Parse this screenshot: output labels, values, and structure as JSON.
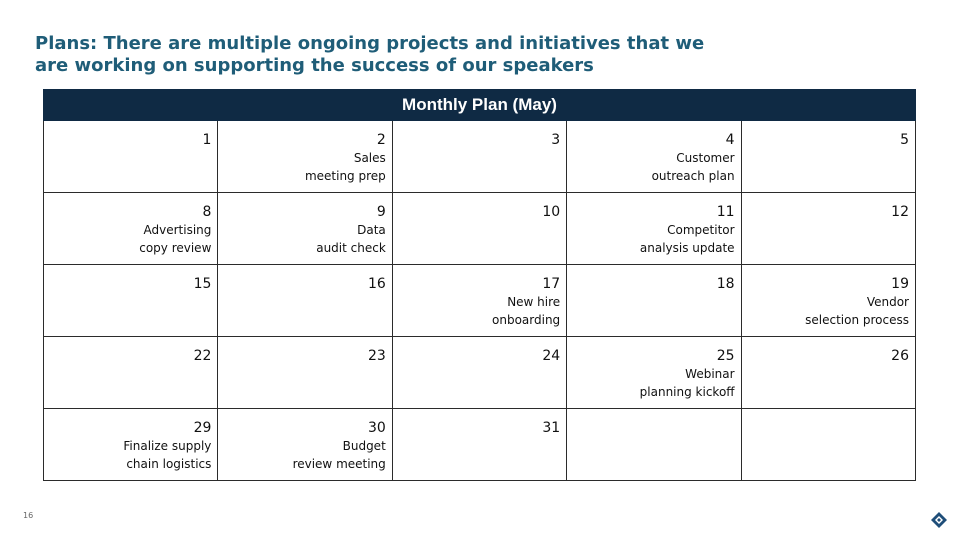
{
  "slide": {
    "title": "Plans: There are multiple ongoing projects and initiatives that we are working on supporting the success of our speakers",
    "page_number": "16"
  },
  "calendar": {
    "header": "Monthly Plan (May)",
    "rows": [
      [
        {
          "day": "1",
          "text": ""
        },
        {
          "day": "2",
          "text": "Sales\nmeeting prep"
        },
        {
          "day": "3",
          "text": ""
        },
        {
          "day": "4",
          "text": "Customer\noutreach plan"
        },
        {
          "day": "5",
          "text": ""
        }
      ],
      [
        {
          "day": "8",
          "text": "Advertising\ncopy review"
        },
        {
          "day": "9",
          "text": "Data\naudit check"
        },
        {
          "day": "10",
          "text": ""
        },
        {
          "day": "11",
          "text": "Competitor\nanalysis update"
        },
        {
          "day": "12",
          "text": ""
        }
      ],
      [
        {
          "day": "15",
          "text": ""
        },
        {
          "day": "16",
          "text": ""
        },
        {
          "day": "17",
          "text": "New hire\nonboarding"
        },
        {
          "day": "18",
          "text": ""
        },
        {
          "day": "19",
          "text": "Vendor\nselection process"
        }
      ],
      [
        {
          "day": "22",
          "text": ""
        },
        {
          "day": "23",
          "text": ""
        },
        {
          "day": "24",
          "text": ""
        },
        {
          "day": "25",
          "text": "Webinar\nplanning kickoff"
        },
        {
          "day": "26",
          "text": ""
        }
      ],
      [
        {
          "day": "29",
          "text": "Finalize supply\nchain logistics"
        },
        {
          "day": "30",
          "text": "Budget\nreview meeting"
        },
        {
          "day": "31",
          "text": ""
        },
        {
          "day": "",
          "text": ""
        },
        {
          "day": "",
          "text": ""
        }
      ]
    ]
  },
  "colors": {
    "title": "#1f5d78",
    "header_bg": "#0f2a44",
    "logo": "#1f4e79"
  },
  "icons": {
    "logo": "company-logo-icon"
  }
}
